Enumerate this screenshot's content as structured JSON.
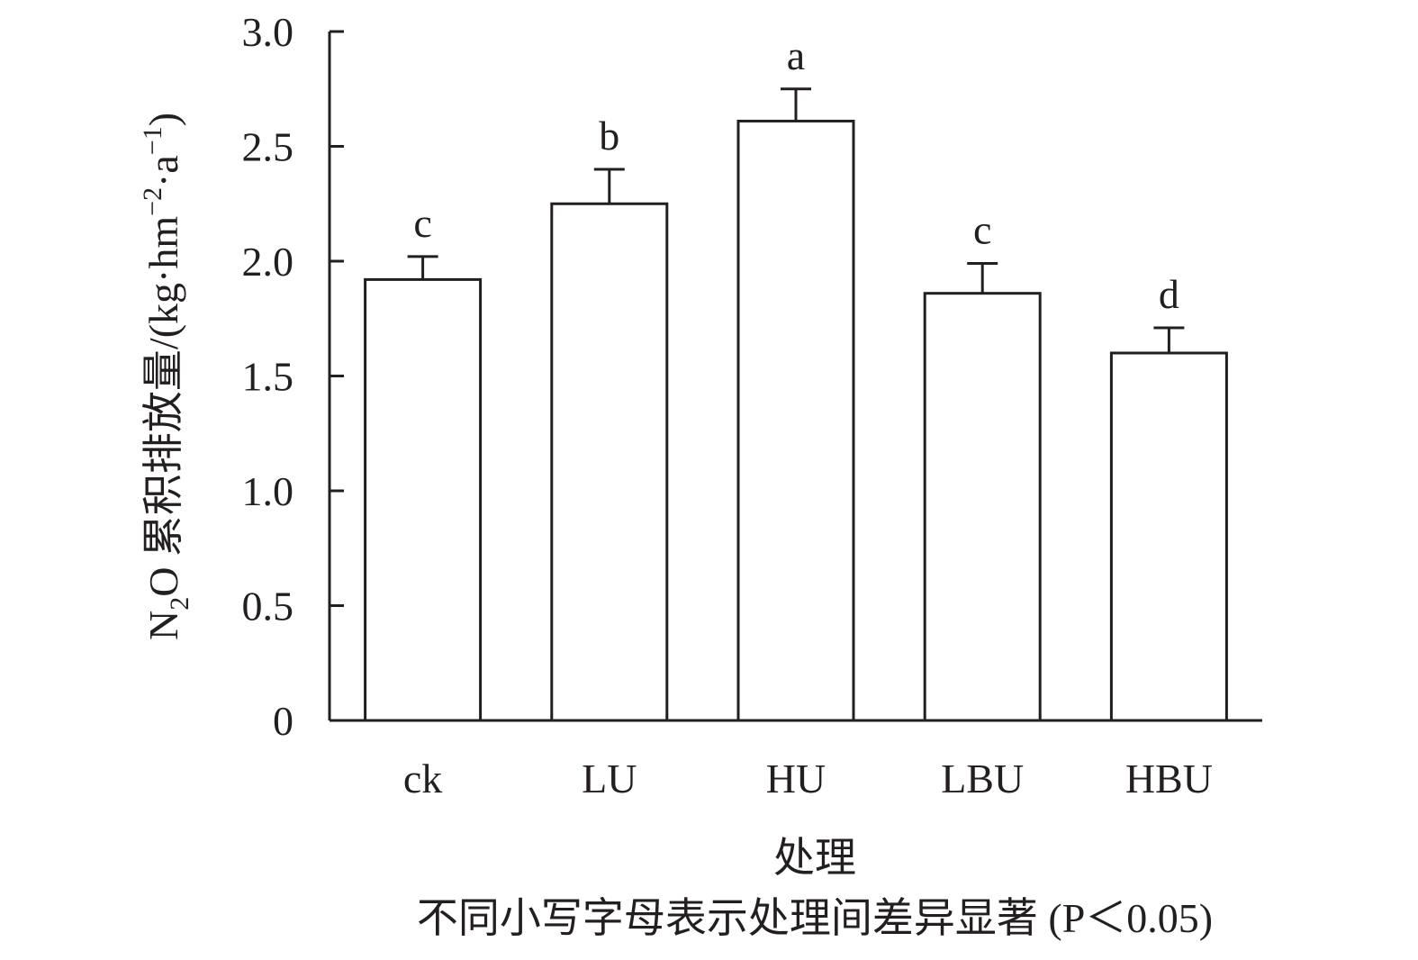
{
  "chart_data": {
    "type": "bar",
    "categories": [
      "ck",
      "LU",
      "HU",
      "LBU",
      "HBU"
    ],
    "values": [
      1.92,
      2.25,
      2.61,
      1.86,
      1.6
    ],
    "error_upper": [
      2.02,
      2.4,
      2.75,
      1.99,
      1.71
    ],
    "significance": [
      "c",
      "b",
      "a",
      "c",
      "d"
    ],
    "xlabel": "处理",
    "ylabel": {
      "prefix": "N",
      "sub": "2",
      "main": "O 累积排放量/(kg·hm",
      "sup1": "−2",
      "mid": "·a",
      "sup2": "−1",
      "end": ")"
    },
    "ylim": [
      0,
      3.0
    ],
    "yticks": [
      "0",
      "0.5",
      "1.0",
      "1.5",
      "2.0",
      "2.5",
      "3.0"
    ],
    "ytick_values": [
      0,
      0.5,
      1.0,
      1.5,
      2.0,
      2.5,
      3.0
    ],
    "note": "不同小写字母表示处理间差异显著 (P＜0.05)",
    "grid": false,
    "bar_color": "#ffffff",
    "line_color": "#231f20"
  }
}
